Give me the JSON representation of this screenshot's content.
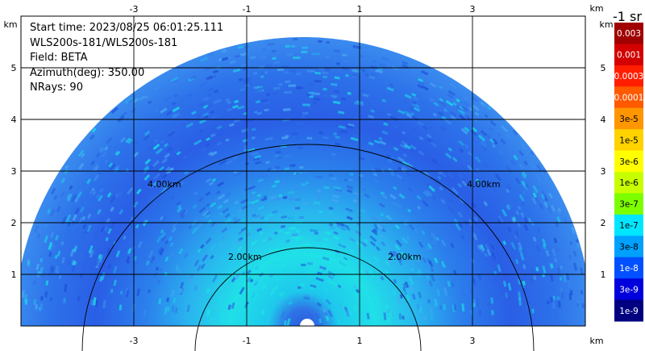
{
  "info": {
    "start_time": "Start time: 2023/08/25 06:01:25.111",
    "radar": "WLS200s-181/WLS200s-181",
    "field": "Field: BETA",
    "azimuth": "Azimuth(deg): 350.00",
    "nrays": "NRays: 90"
  },
  "axes": {
    "x_ticks": [
      "-3",
      "-1",
      "1",
      "3"
    ],
    "y_ticks": [
      "1",
      "2",
      "3",
      "4",
      "5"
    ],
    "unit": "km"
  },
  "range_rings": [
    {
      "label": "2.00km"
    },
    {
      "label": "4.00km"
    }
  ],
  "colorbar": {
    "unit_label": "-1 sr",
    "labels": [
      "0.003",
      "0.001",
      "0.0003",
      "0.0001",
      "3e-5",
      "1e-5",
      "3e-6",
      "1e-6",
      "3e-7",
      "1e-7",
      "3e-8",
      "1e-8",
      "3e-9",
      "1e-9"
    ],
    "colors": [
      "#a00000",
      "#d20000",
      "#ff1e00",
      "#ff5a00",
      "#ff9600",
      "#ffd200",
      "#ffff00",
      "#c8ff00",
      "#7dff00",
      "#00e6ff",
      "#00a0ff",
      "#0050ff",
      "#0000dc",
      "#000080"
    ],
    "label_colors": [
      "#ffffff",
      "#ffffff",
      "#ffffff",
      "#ffffff",
      "#000000",
      "#000000",
      "#000000",
      "#000000",
      "#000000",
      "#000000",
      "#000000",
      "#ffffff",
      "#ffffff",
      "#ffffff"
    ]
  }
}
